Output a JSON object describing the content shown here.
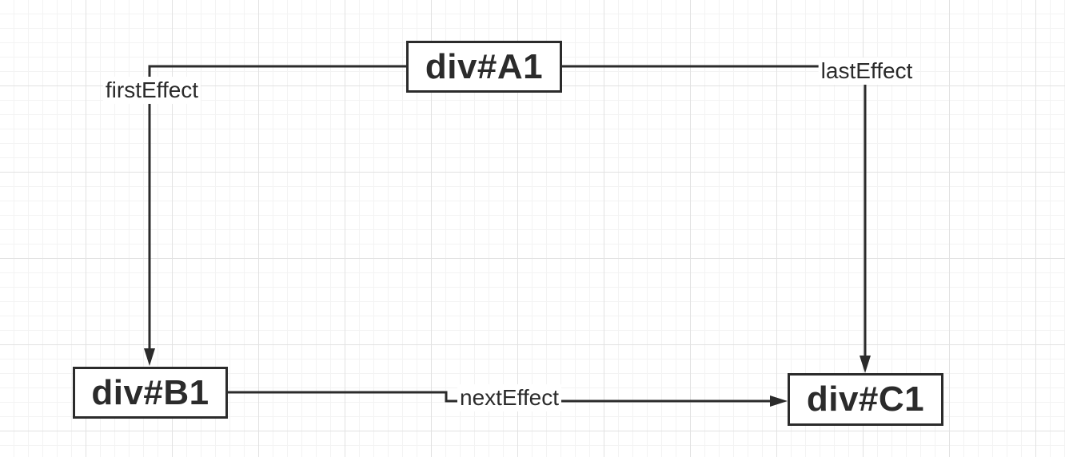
{
  "diagram": {
    "nodes": {
      "a1": {
        "label": "div#A1"
      },
      "b1": {
        "label": "div#B1"
      },
      "c1": {
        "label": "div#C1"
      }
    },
    "edges": {
      "first_effect": {
        "from": "div#A1",
        "to": "div#B1",
        "label": "firstEffect"
      },
      "last_effect": {
        "from": "div#A1",
        "to": "div#C1",
        "label": "lastEffect"
      },
      "next_effect": {
        "from": "div#B1",
        "to": "div#C1",
        "label": "nextEffect"
      }
    },
    "colors": {
      "line": "#2b2b2b",
      "background": "#ffffff",
      "grid_major": "#e2e2e2",
      "grid_minor": "#f3f3f3"
    }
  }
}
